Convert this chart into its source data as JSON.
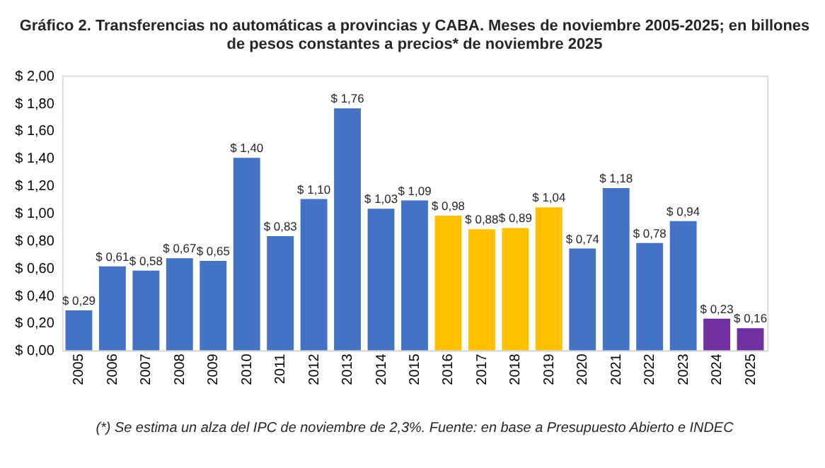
{
  "chart_data": {
    "type": "bar",
    "title": [
      "Gráfico 2. Transferencias no automáticas a provincias y CABA. Meses de noviembre 2005-2025; en billones",
      "de pesos constantes a precios* de noviembre 2025"
    ],
    "categories": [
      "2005",
      "2006",
      "2007",
      "2008",
      "2009",
      "2010",
      "2011",
      "2012",
      "2013",
      "2014",
      "2015",
      "2016",
      "2017",
      "2018",
      "2019",
      "2020",
      "2021",
      "2022",
      "2023",
      "2024",
      "2025"
    ],
    "values": [
      0.29,
      0.61,
      0.58,
      0.67,
      0.65,
      1.4,
      0.83,
      1.1,
      1.76,
      1.03,
      1.09,
      0.98,
      0.88,
      0.89,
      1.04,
      0.74,
      1.18,
      0.78,
      0.94,
      0.23,
      0.16
    ],
    "colors": [
      "#4472c4",
      "#4472c4",
      "#4472c4",
      "#4472c4",
      "#4472c4",
      "#4472c4",
      "#4472c4",
      "#4472c4",
      "#4472c4",
      "#4472c4",
      "#4472c4",
      "#ffc000",
      "#ffc000",
      "#ffc000",
      "#ffc000",
      "#4472c4",
      "#4472c4",
      "#4472c4",
      "#4472c4",
      "#7030a0",
      "#7030a0"
    ],
    "value_labels": [
      "$ 0,29",
      "$ 0,61",
      "$ 0,58",
      "$ 0,67",
      "$ 0,65",
      "$ 1,40",
      "$ 0,83",
      "$ 1,10",
      "$ 1,76",
      "$ 1,03",
      "$ 1,09",
      "$ 0,98",
      "$ 0,88",
      "$ 0,89",
      "$ 1,04",
      "$ 0,74",
      "$ 1,18",
      "$ 0,78",
      "$ 0,94",
      "$ 0,23",
      "$ 0,16"
    ],
    "ylim": [
      0,
      2
    ],
    "yticks": [
      {
        "value": 0,
        "label": "$ 0,00"
      },
      {
        "value": 0.2,
        "label": "$ 0,20"
      },
      {
        "value": 0.4,
        "label": "$ 0,40"
      },
      {
        "value": 0.6,
        "label": "$ 0,60"
      },
      {
        "value": 0.8,
        "label": "$ 0,80"
      },
      {
        "value": 1.0,
        "label": "$ 1,00"
      },
      {
        "value": 1.2,
        "label": "$ 1,20"
      },
      {
        "value": 1.4,
        "label": "$ 1,40"
      },
      {
        "value": 1.6,
        "label": "$ 1,60"
      },
      {
        "value": 1.8,
        "label": "$ 1,80"
      },
      {
        "value": 2.0,
        "label": "$ 2,00"
      }
    ],
    "grid": false,
    "annotations": [
      "(*) Se estima un alza del IPC de noviembre de 2,3%. Fuente: en base a Presupuesto Abierto e INDEC"
    ]
  }
}
